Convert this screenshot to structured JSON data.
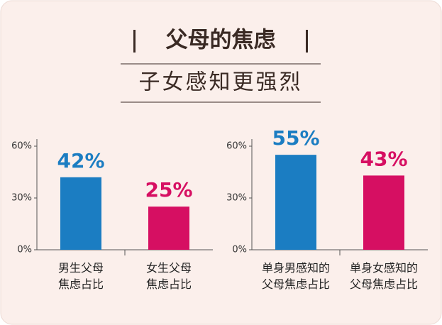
{
  "header": {
    "title": "父母的焦虑",
    "subtitle": "子女感知更强烈"
  },
  "chart_data": [
    {
      "type": "bar",
      "categories": [
        "男生父母\n焦虑占比",
        "女生父母\n焦虑占比"
      ],
      "values": [
        42,
        25
      ],
      "value_labels": [
        "42%",
        "25%"
      ],
      "colors": [
        "#1b7dc2",
        "#d60f62"
      ],
      "ylim": [
        0,
        60
      ],
      "yticks": [
        {
          "value": 0,
          "label": "0%"
        },
        {
          "value": 30,
          "label": "30%"
        },
        {
          "value": 60,
          "label": "60%"
        }
      ]
    },
    {
      "type": "bar",
      "categories": [
        "单身男感知的\n父母焦虑占比",
        "单身女感知的\n父母焦虑占比"
      ],
      "values": [
        55,
        43
      ],
      "value_labels": [
        "55%",
        "43%"
      ],
      "colors": [
        "#1b7dc2",
        "#d60f62"
      ],
      "ylim": [
        0,
        60
      ],
      "yticks": [
        {
          "value": 0,
          "label": "0%"
        },
        {
          "value": 30,
          "label": "30%"
        },
        {
          "value": 60,
          "label": "60%"
        }
      ]
    }
  ]
}
